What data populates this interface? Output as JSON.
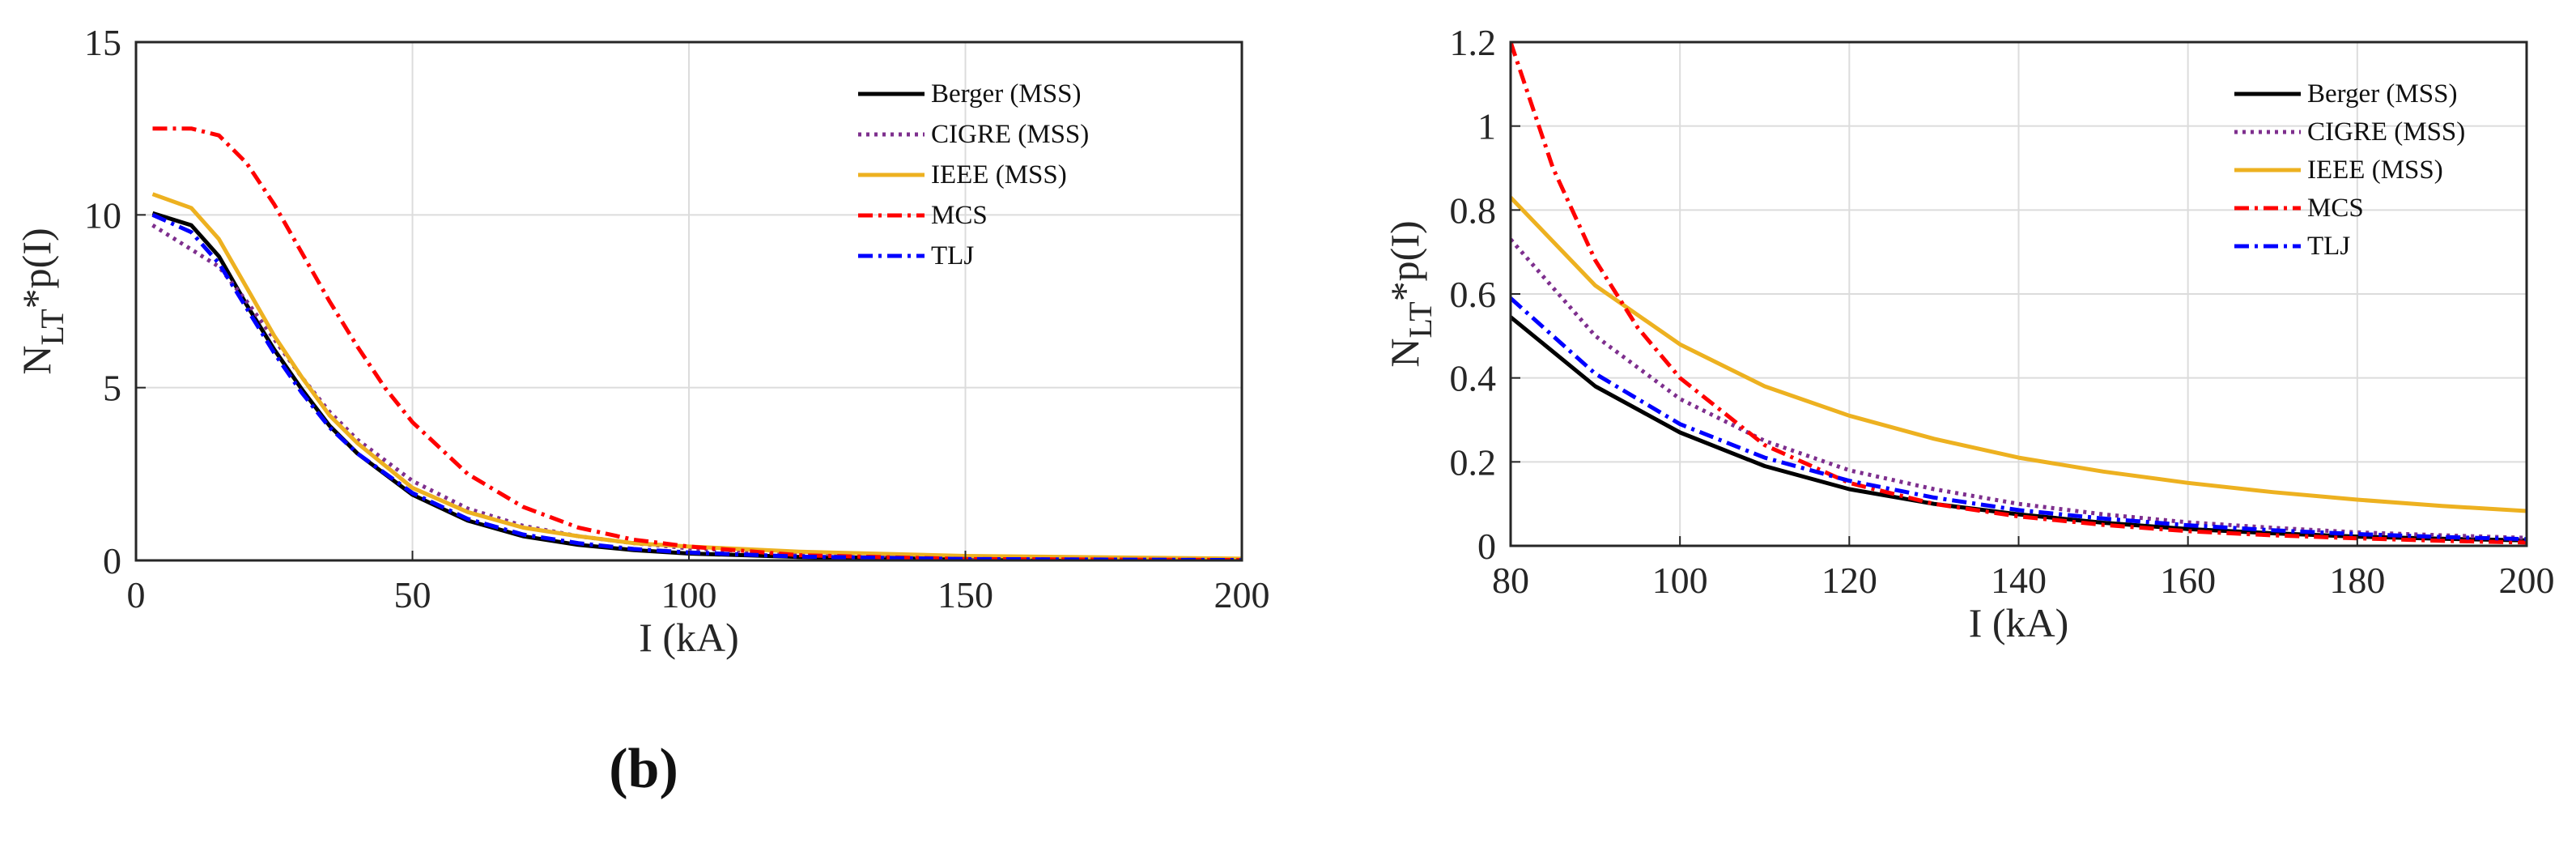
{
  "caption": "(b)",
  "chart_data": [
    {
      "type": "line",
      "xlabel": "I (kA)",
      "ylabel": "N_LT*p(I)",
      "ylabel_main": "N",
      "ylabel_sub": "LT",
      "ylabel_rest": "*p(I)",
      "xlim": [
        0,
        200
      ],
      "ylim": [
        0,
        15
      ],
      "xticks": [
        0,
        50,
        100,
        150,
        200
      ],
      "yticks": [
        0,
        5,
        10,
        15
      ],
      "grid": true,
      "legend": "top-right",
      "series": [
        {
          "name": "Berger (MSS)",
          "color": "#000000",
          "dash": "",
          "x": [
            3,
            10,
            15,
            20,
            25,
            30,
            35,
            40,
            50,
            60,
            70,
            80,
            90,
            100,
            120,
            150,
            200
          ],
          "values": [
            10.05,
            9.7,
            8.8,
            7.4,
            6.1,
            4.95,
            3.9,
            3.1,
            1.9,
            1.15,
            0.7,
            0.45,
            0.3,
            0.2,
            0.1,
            0.04,
            0.01
          ]
        },
        {
          "name": "CIGRE (MSS)",
          "color": "#7E2F8E",
          "dash": "4,6",
          "x": [
            3,
            10,
            15,
            20,
            25,
            30,
            35,
            40,
            50,
            60,
            70,
            80,
            90,
            100,
            120,
            150,
            200
          ],
          "values": [
            9.7,
            9.0,
            8.5,
            7.5,
            6.4,
            5.3,
            4.3,
            3.5,
            2.3,
            1.5,
            1.0,
            0.7,
            0.5,
            0.35,
            0.2,
            0.08,
            0.02
          ]
        },
        {
          "name": "IEEE (MSS)",
          "color": "#EDB120",
          "dash": "",
          "x": [
            3,
            10,
            15,
            20,
            25,
            30,
            35,
            40,
            50,
            60,
            70,
            80,
            90,
            100,
            120,
            150,
            200
          ],
          "values": [
            10.6,
            10.2,
            9.3,
            7.9,
            6.5,
            5.3,
            4.2,
            3.4,
            2.1,
            1.4,
            0.95,
            0.7,
            0.5,
            0.4,
            0.25,
            0.13,
            0.05
          ]
        },
        {
          "name": "MCS",
          "color": "#FF0000",
          "dash": "18,7,4,7",
          "x": [
            3,
            10,
            15,
            20,
            25,
            30,
            35,
            40,
            45,
            50,
            60,
            70,
            80,
            90,
            100,
            120,
            150,
            200
          ],
          "values": [
            12.5,
            12.5,
            12.3,
            11.5,
            10.3,
            8.9,
            7.5,
            6.2,
            5.0,
            4.0,
            2.5,
            1.55,
            0.95,
            0.6,
            0.4,
            0.15,
            0.04,
            0.01
          ]
        },
        {
          "name": "TLJ",
          "color": "#0000FF",
          "dash": "18,7,4,7",
          "x": [
            3,
            10,
            15,
            20,
            25,
            30,
            35,
            40,
            50,
            60,
            70,
            80,
            90,
            100,
            120,
            150,
            200
          ],
          "values": [
            10.0,
            9.5,
            8.6,
            7.3,
            6.0,
            4.85,
            3.85,
            3.1,
            1.95,
            1.2,
            0.75,
            0.5,
            0.33,
            0.23,
            0.11,
            0.04,
            0.01
          ]
        }
      ]
    },
    {
      "type": "line",
      "xlabel": "I (kA)",
      "ylabel": "N_LT*p(I)",
      "ylabel_main": "N",
      "ylabel_sub": "LT",
      "ylabel_rest": "*p(I)",
      "xlim": [
        80,
        200
      ],
      "ylim": [
        0,
        1.2
      ],
      "xticks": [
        80,
        100,
        120,
        140,
        160,
        180,
        200
      ],
      "yticks": [
        0,
        0.2,
        0.4,
        0.6,
        0.8,
        1,
        1.2
      ],
      "grid": true,
      "legend": "top-right",
      "series": [
        {
          "name": "Berger (MSS)",
          "color": "#000000",
          "dash": "",
          "x": [
            80,
            90,
            100,
            110,
            120,
            130,
            140,
            150,
            160,
            170,
            180,
            190,
            200
          ],
          "values": [
            0.545,
            0.38,
            0.27,
            0.19,
            0.135,
            0.1,
            0.075,
            0.055,
            0.04,
            0.03,
            0.022,
            0.017,
            0.013
          ]
        },
        {
          "name": "CIGRE (MSS)",
          "color": "#7E2F8E",
          "dash": "4,6",
          "x": [
            80,
            90,
            100,
            110,
            120,
            130,
            140,
            150,
            160,
            170,
            180,
            190,
            200
          ],
          "values": [
            0.73,
            0.5,
            0.35,
            0.25,
            0.18,
            0.135,
            0.1,
            0.075,
            0.056,
            0.043,
            0.032,
            0.025,
            0.019
          ]
        },
        {
          "name": "IEEE (MSS)",
          "color": "#EDB120",
          "dash": "",
          "x": [
            80,
            90,
            100,
            110,
            120,
            130,
            140,
            150,
            160,
            170,
            180,
            190,
            200
          ],
          "values": [
            0.83,
            0.62,
            0.48,
            0.38,
            0.31,
            0.255,
            0.21,
            0.177,
            0.15,
            0.128,
            0.11,
            0.095,
            0.083
          ]
        },
        {
          "name": "MCS",
          "color": "#FF0000",
          "dash": "18,7,4,7",
          "x": [
            80,
            85,
            90,
            95,
            100,
            110,
            120,
            130,
            140,
            150,
            160,
            170,
            180,
            190,
            200
          ],
          "values": [
            1.2,
            0.9,
            0.68,
            0.52,
            0.4,
            0.24,
            0.15,
            0.1,
            0.07,
            0.05,
            0.035,
            0.025,
            0.018,
            0.012,
            0.008
          ]
        },
        {
          "name": "TLJ",
          "color": "#0000FF",
          "dash": "18,7,4,7",
          "x": [
            80,
            90,
            100,
            110,
            120,
            130,
            140,
            150,
            160,
            170,
            180,
            190,
            200
          ],
          "values": [
            0.59,
            0.41,
            0.29,
            0.21,
            0.155,
            0.115,
            0.085,
            0.065,
            0.049,
            0.037,
            0.028,
            0.021,
            0.016
          ]
        }
      ]
    }
  ]
}
